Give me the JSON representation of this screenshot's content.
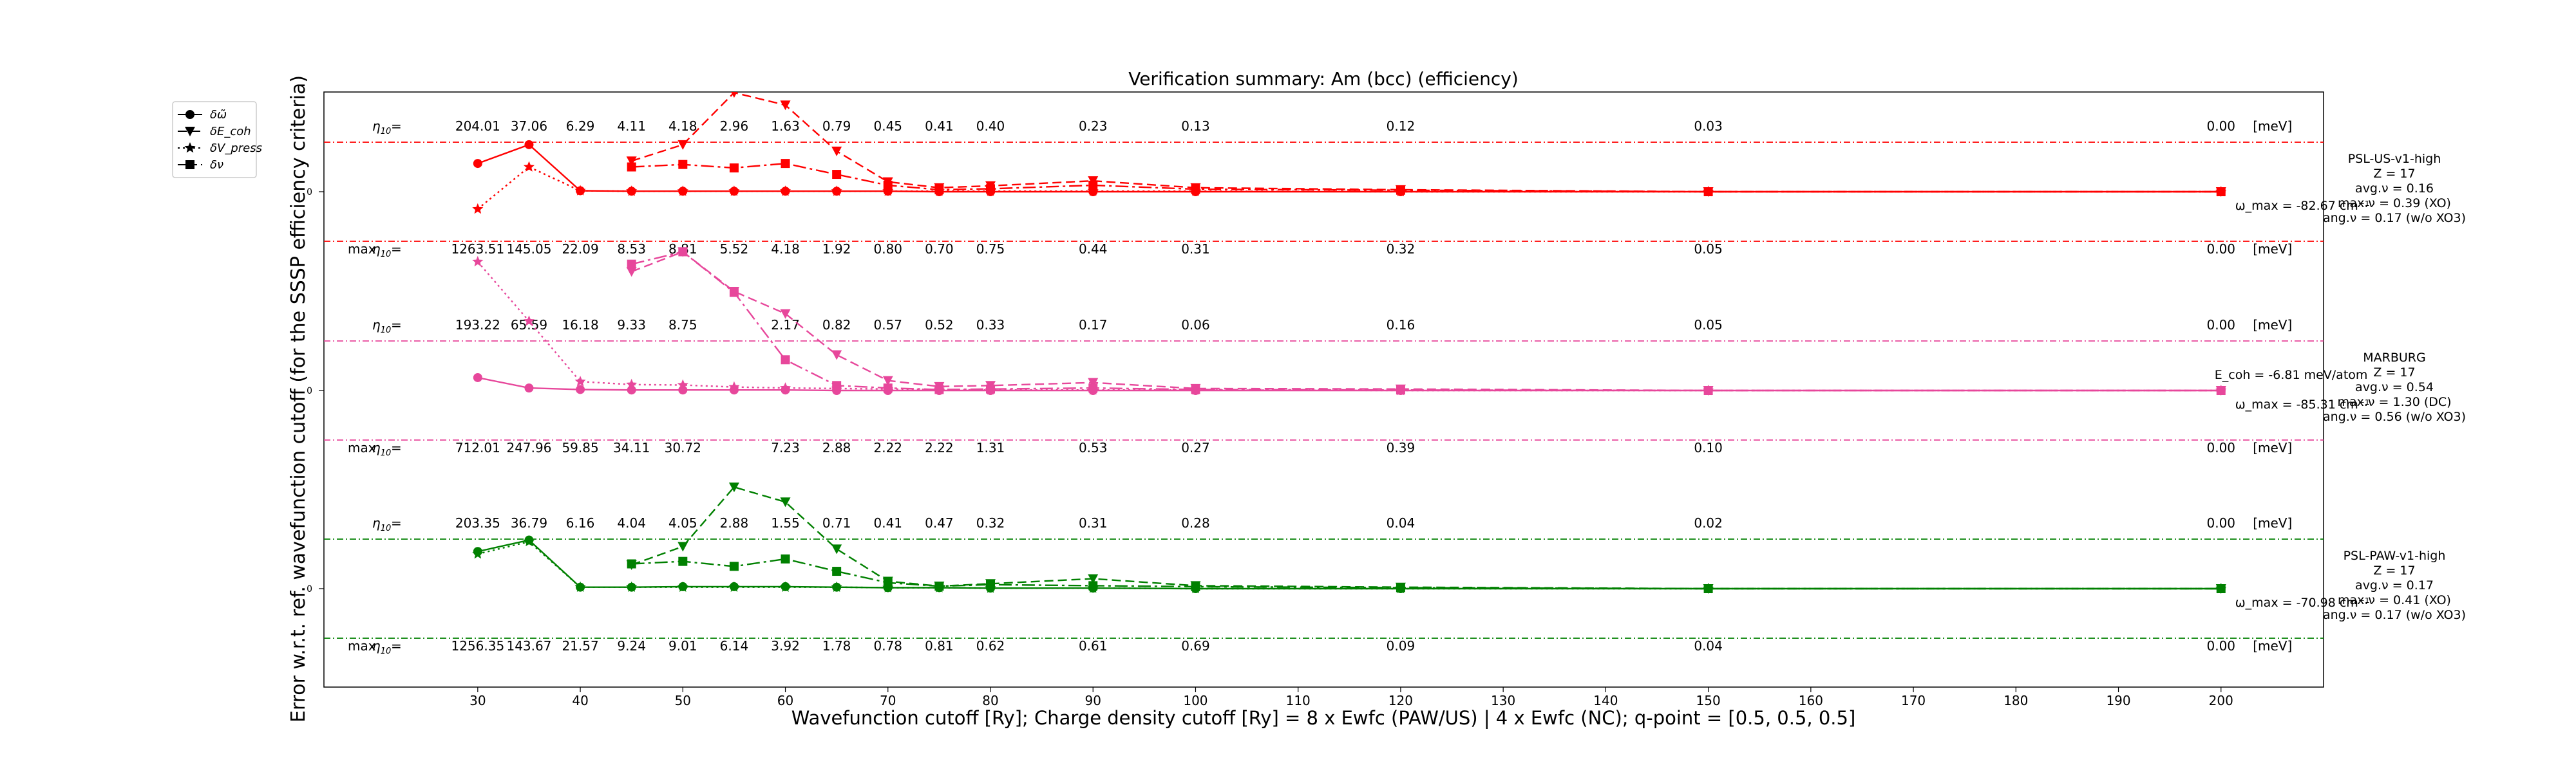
{
  "chart_data": {
    "type": "line",
    "title": "Verification summary: Am (bcc) (efficiency)",
    "xlabel": "Wavefunction cutoff [Ry]; Charge density cutoff [Ry] = 8 x Ewfc (PAW/US) | 4 x Ewfc (NC); q-point = [0.5, 0.5, 0.5]",
    "ylabel": "Error w.r.t. ref. wavefunction cutoff (for the SSSP efficiency criteria)",
    "xlim": [
      15,
      210
    ],
    "x_ticks": [
      30,
      40,
      50,
      60,
      70,
      80,
      90,
      100,
      110,
      120,
      130,
      140,
      150,
      160,
      170,
      180,
      190,
      200
    ],
    "ytick_label": "0",
    "legend": {
      "placement": "top-left",
      "entries": [
        {
          "label": "δω̃",
          "marker": "circle",
          "dash": "solid"
        },
        {
          "label": "δE_coh",
          "marker": "triangle-down",
          "dash": "dashed"
        },
        {
          "label": "δV_press",
          "marker": "star",
          "dash": "dotted"
        },
        {
          "label": "δν",
          "marker": "square",
          "dash": "dashdot"
        }
      ]
    },
    "cutoffs": [
      30,
      35,
      40,
      45,
      50,
      55,
      60,
      65,
      70,
      75,
      80,
      90,
      100,
      120,
      150,
      200
    ],
    "panels": [
      {
        "name": "PSL-US-v1-high",
        "color": "#ff0000",
        "info": [
          "PSL-US-v1-high",
          "Z = 17",
          "avg.ν = 0.16",
          "max.ν = 0.39 (XO)",
          "ang.ν = 0.17 (w/o XO3)"
        ],
        "omega_label": "ω_max = -82.67 cm⁻¹",
        "ecoh_label": "",
        "eta10": [
          "204.01",
          "37.06",
          "6.29",
          "4.11",
          "4.18",
          "2.96",
          "1.63",
          "0.79",
          "0.45",
          "0.41",
          "0.40",
          "0.23",
          "0.13",
          "0.12",
          "0.03",
          "0.00"
        ],
        "max_eta10": [
          "1263.51",
          "145.05",
          "22.09",
          "8.53",
          "8.81",
          "5.52",
          "4.18",
          "1.92",
          "0.80",
          "0.70",
          "0.75",
          "0.44",
          "0.31",
          "0.32",
          "0.05",
          "0.00"
        ],
        "series": {
          "omega": {
            "x": [
              30,
              35,
              40,
              45,
              50,
              55,
              60,
              65,
              70,
              75,
              80,
              90,
              100,
              120,
              150,
              200
            ],
            "y": [
              0.57,
              0.95,
              0.02,
              0.01,
              0.01,
              0.01,
              0.01,
              0.01,
              0.01,
              0.0,
              0.0,
              0.0,
              0.0,
              0.0,
              0.0,
              0.0
            ]
          },
          "ecoh": {
            "x": [
              45,
              50,
              55,
              60,
              65,
              70,
              75,
              80,
              90,
              100,
              120,
              150,
              200
            ],
            "y": [
              0.62,
              0.95,
              2.0,
              1.75,
              0.82,
              0.2,
              0.08,
              0.12,
              0.22,
              0.08,
              0.04,
              0.0,
              0.0
            ]
          },
          "vpress": {
            "x": [
              30,
              35,
              40,
              45,
              50,
              55,
              60,
              65,
              70,
              75,
              80,
              90,
              100,
              120,
              150,
              200
            ],
            "y": [
              -0.35,
              0.5,
              0.02,
              0.01,
              0.01,
              0.01,
              0.01,
              0.01,
              0.01,
              0.01,
              0.01,
              0.01,
              0.01,
              0.0,
              0.0,
              0.0
            ]
          },
          "nu": {
            "x": [
              45,
              50,
              55,
              60,
              65,
              70,
              75,
              80,
              90,
              100,
              120,
              150,
              200
            ],
            "y": [
              0.5,
              0.55,
              0.48,
              0.57,
              0.35,
              0.13,
              0.04,
              0.06,
              0.13,
              0.05,
              0.03,
              0.0,
              0.0
            ]
          }
        }
      },
      {
        "name": "MARBURG",
        "color": "#e7479b",
        "info": [
          "MARBURG",
          "Z = 17",
          "avg.ν = 0.54",
          "max.ν = 1.30 (DC)",
          "ang.ν = 0.56 (w/o XO3)"
        ],
        "omega_label": "ω_max = -85.31 cm⁻¹",
        "ecoh_label": "E_coh = -6.81 meV/atom",
        "eta10": [
          "193.22",
          "65.59",
          "16.18",
          "9.33",
          "8.75",
          "",
          "2.17",
          "0.82",
          "0.57",
          "0.52",
          "0.33",
          "0.17",
          "0.06",
          "0.16",
          "0.05",
          "0.00"
        ],
        "max_eta10": [
          "712.01",
          "247.96",
          "59.85",
          "34.11",
          "30.72",
          "",
          "7.23",
          "2.88",
          "2.22",
          "2.22",
          "1.31",
          "0.53",
          "0.27",
          "0.39",
          "0.10",
          "0.00"
        ],
        "series": {
          "omega": {
            "x": [
              30,
              35,
              40,
              45,
              50,
              55,
              60,
              65,
              70,
              75,
              80,
              90,
              100,
              120,
              150,
              200
            ],
            "y": [
              0.26,
              0.05,
              0.02,
              0.01,
              0.01,
              0.01,
              0.01,
              0.0,
              0.0,
              0.0,
              0.0,
              0.0,
              0.0,
              0.0,
              0.0,
              0.0
            ]
          },
          "ecoh": {
            "x": [
              45,
              50,
              55,
              60,
              65,
              70,
              75,
              80,
              90,
              100,
              120,
              150,
              200
            ],
            "y": [
              2.4,
              2.8,
              2.0,
              1.55,
              0.72,
              0.2,
              0.08,
              0.1,
              0.16,
              0.04,
              0.03,
              0.0,
              0.0
            ]
          },
          "vpress": {
            "x": [
              30,
              35,
              40,
              45,
              50,
              55,
              60,
              65,
              70,
              75,
              80,
              90,
              100,
              120,
              150,
              200
            ],
            "y": [
              2.6,
              1.4,
              0.18,
              0.12,
              0.11,
              0.07,
              0.05,
              0.04,
              0.03,
              0.02,
              0.01,
              0.01,
              0.01,
              0.0,
              0.0,
              0.0
            ]
          },
          "nu": {
            "x": [
              45,
              50,
              55,
              60,
              65,
              70,
              75,
              80,
              90,
              100,
              120,
              150,
              200
            ],
            "y": [
              2.55,
              2.8,
              1.98,
              0.62,
              0.1,
              0.05,
              0.02,
              0.03,
              0.05,
              0.02,
              0.01,
              0.0,
              0.0
            ]
          }
        }
      },
      {
        "name": "PSL-PAW-v1-high",
        "color": "#008000",
        "info": [
          "PSL-PAW-v1-high",
          "Z = 17",
          "avg.ν = 0.17",
          "max.ν = 0.41 (XO)",
          "ang.ν = 0.17 (w/o XO3)"
        ],
        "omega_label": "ω_max = -70.98 cm⁻¹",
        "ecoh_label": "",
        "eta10": [
          "203.35",
          "36.79",
          "6.16",
          "4.04",
          "4.05",
          "2.88",
          "1.55",
          "0.71",
          "0.41",
          "0.47",
          "0.32",
          "0.31",
          "0.28",
          "0.04",
          "0.02",
          "0.00"
        ],
        "max_eta10": [
          "1256.35",
          "143.67",
          "21.57",
          "9.24",
          "9.01",
          "6.14",
          "3.92",
          "1.78",
          "0.78",
          "0.81",
          "0.62",
          "0.61",
          "0.69",
          "0.09",
          "0.04",
          "0.00"
        ],
        "series": {
          "omega": {
            "x": [
              30,
              35,
              40,
              45,
              50,
              55,
              60,
              65,
              70,
              75,
              80,
              90,
              100,
              120,
              150,
              200
            ],
            "y": [
              0.75,
              0.98,
              0.03,
              0.03,
              0.04,
              0.04,
              0.04,
              0.03,
              0.02,
              0.02,
              0.01,
              0.01,
              0.0,
              0.0,
              0.0,
              0.0
            ]
          },
          "ecoh": {
            "x": [
              45,
              50,
              55,
              60,
              65,
              70,
              75,
              80,
              90,
              100,
              120,
              150,
              200
            ],
            "y": [
              0.48,
              0.85,
              2.05,
              1.75,
              0.8,
              0.15,
              0.05,
              0.1,
              0.2,
              0.06,
              0.03,
              0.0,
              0.0
            ]
          },
          "vpress": {
            "x": [
              30,
              35,
              40,
              45,
              50,
              55,
              60,
              65,
              70,
              75,
              80,
              90,
              100,
              120,
              150,
              200
            ],
            "y": [
              0.7,
              0.95,
              0.03,
              0.03,
              0.03,
              0.03,
              0.03,
              0.03,
              0.02,
              0.02,
              0.01,
              0.01,
              0.0,
              0.0,
              0.0,
              0.0
            ]
          },
          "nu": {
            "x": [
              45,
              50,
              55,
              60,
              65,
              70,
              75,
              80,
              90,
              100,
              120,
              150,
              200
            ],
            "y": [
              0.5,
              0.55,
              0.45,
              0.6,
              0.35,
              0.12,
              0.05,
              0.08,
              0.06,
              0.04,
              0.02,
              0.0,
              0.0
            ]
          }
        }
      }
    ]
  }
}
